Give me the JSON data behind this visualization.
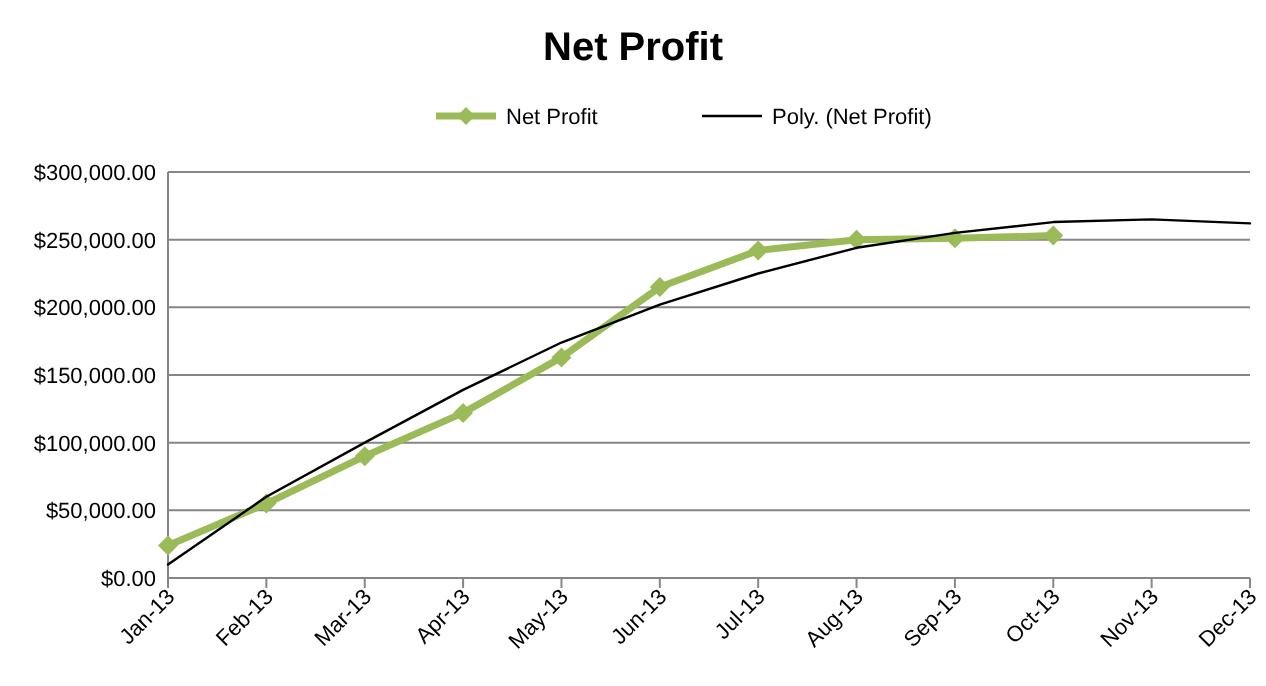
{
  "chart_data": {
    "type": "line",
    "title": "Net Profit",
    "categories": [
      "Jan-13",
      "Feb-13",
      "Mar-13",
      "Apr-13",
      "May-13",
      "Jun-13",
      "Jul-13",
      "Aug-13",
      "Sep-13",
      "Oct-13",
      "Nov-13",
      "Dec-13"
    ],
    "series": [
      {
        "name": "Net Profit",
        "color": "#9bbb59",
        "marker": "diamond",
        "values": [
          24000,
          55000,
          90000,
          122000,
          163000,
          215000,
          242000,
          250000,
          251000,
          253000,
          null,
          null
        ]
      },
      {
        "name": "Poly. (Net Profit)",
        "color": "#000000",
        "marker": "none",
        "values": [
          10000,
          60000,
          100000,
          139000,
          174000,
          202000,
          225000,
          244000,
          255000,
          263000,
          265000,
          262000
        ]
      }
    ],
    "ylim": [
      0,
      300000
    ],
    "yticks": [
      {
        "value": 0,
        "label": "$0.00"
      },
      {
        "value": 50000,
        "label": "$50,000.00"
      },
      {
        "value": 100000,
        "label": "$100,000.00"
      },
      {
        "value": 150000,
        "label": "$150,000.00"
      },
      {
        "value": 200000,
        "label": "$200,000.00"
      },
      {
        "value": 250000,
        "label": "$250,000.00"
      },
      {
        "value": 300000,
        "label": "$300,000.00"
      }
    ],
    "grid": "y",
    "legend": "top"
  }
}
